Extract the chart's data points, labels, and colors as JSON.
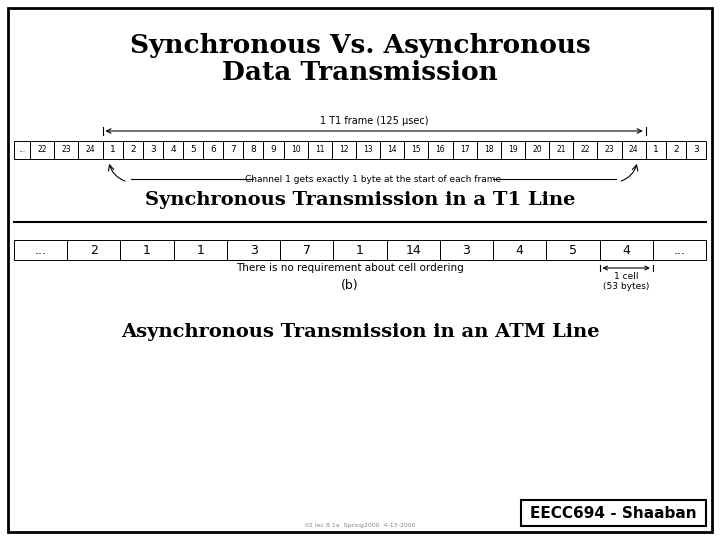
{
  "title_line1": "Synchronous Vs. Asynchronous",
  "title_line2": "Data Transmission",
  "sync_label": "Synchronous Transmission in a T1 Line",
  "async_label": "Asynchronous Transmission in an ATM Line",
  "t1_frame_label": "1 T1 frame (125 μsec)",
  "channel_label": "Channel 1 gets exactly 1 byte at the start of each frame",
  "t1_cells_prefix": [
    "...",
    "22",
    "23",
    "24"
  ],
  "t1_cells_main": [
    "1",
    "2",
    "3",
    "4",
    "5",
    "6",
    "7",
    "8",
    "9",
    "10",
    "11",
    "12",
    "13",
    "14",
    "15",
    "16",
    "17",
    "18",
    "19",
    "20",
    "21",
    "22",
    "23",
    "24"
  ],
  "t1_cells_suffix": [
    "1",
    "2",
    "3"
  ],
  "atm_cells": [
    "...",
    "2",
    "1",
    "1",
    "3",
    "7",
    "1",
    "14",
    "3",
    "4",
    "5",
    "4",
    "..."
  ],
  "no_req_label": "There is no requirement about cell ordering",
  "one_cell_label": "1 cell\n(53 bytes)",
  "b_label": "(b)",
  "eecc_label": "EECC694 - Shaaban",
  "small_text": "02 lec 8 1a  Spring2000  4-13-2000",
  "bg_color": "#ffffff",
  "border_color": "#000000",
  "text_color": "#000000"
}
